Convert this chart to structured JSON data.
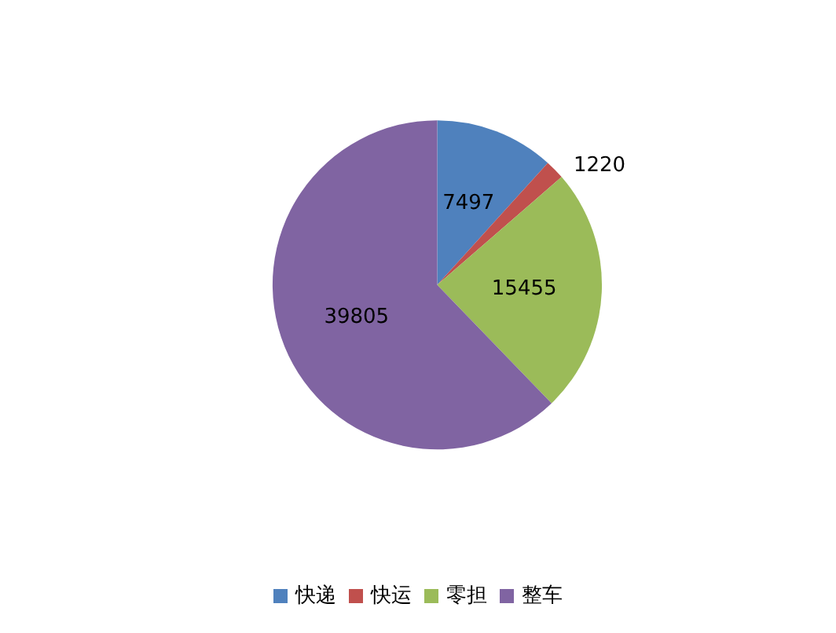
{
  "chart_data": {
    "type": "pie",
    "categories": [
      "快递",
      "快运",
      "零担",
      "整车"
    ],
    "values": [
      7497,
      1220,
      15455,
      39805
    ],
    "colors": [
      "#4f81bd",
      "#c0504d",
      "#9bbb59",
      "#8064a2"
    ],
    "data_labels": true,
    "legend": "bottom"
  }
}
